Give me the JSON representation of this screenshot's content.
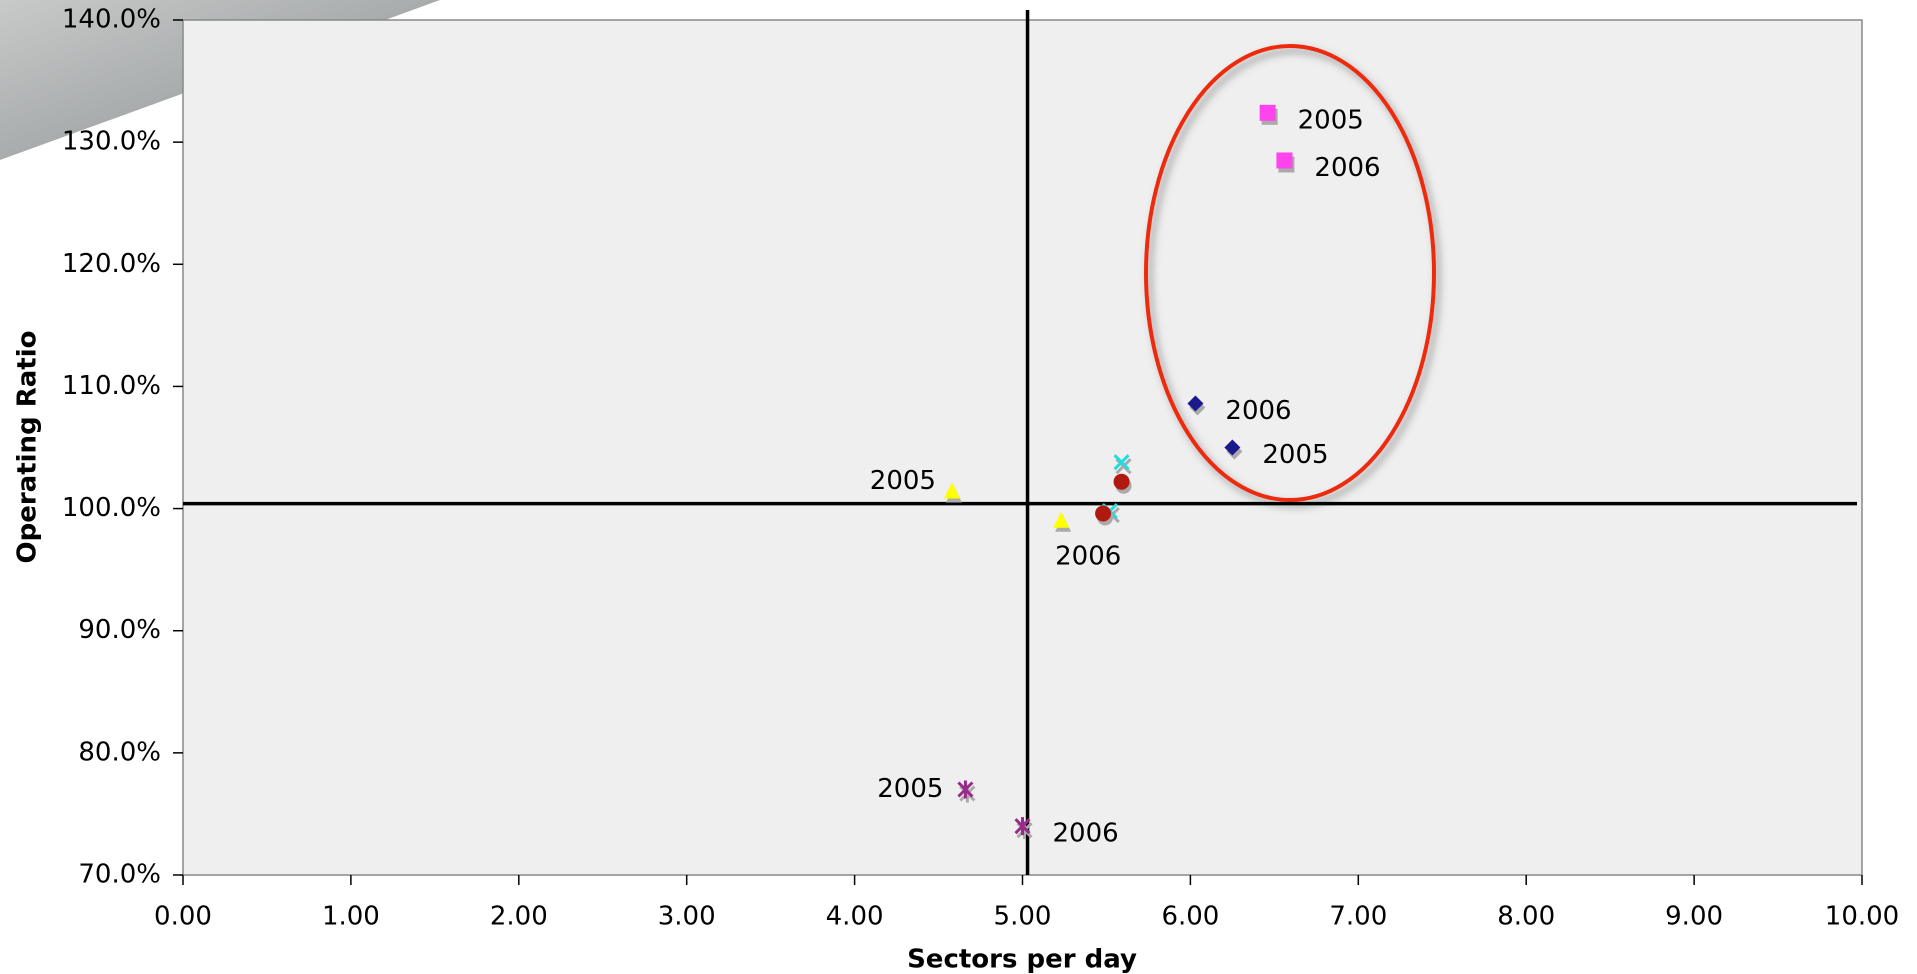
{
  "chart_data": {
    "type": "scatter",
    "x_label": "Sectors per day",
    "y_label": "Operating Ratio",
    "xlim": [
      0,
      10
    ],
    "xticks": [
      {
        "value": 0,
        "label": "0.00"
      },
      {
        "value": 1,
        "label": "1.00"
      },
      {
        "value": 2,
        "label": "2.00"
      },
      {
        "value": 3,
        "label": "3.00"
      },
      {
        "value": 4,
        "label": "4.00"
      },
      {
        "value": 5,
        "label": "5.00"
      },
      {
        "value": 6,
        "label": "6.00"
      },
      {
        "value": 7,
        "label": "7.00"
      },
      {
        "value": 8,
        "label": "8.00"
      },
      {
        "value": 9,
        "label": "9.00"
      },
      {
        "value": 10,
        "label": "10.00"
      }
    ],
    "ylim": [
      70,
      140
    ],
    "yticks": [
      {
        "value": 70,
        "label": "70.0%"
      },
      {
        "value": 80,
        "label": "80.0%"
      },
      {
        "value": 90,
        "label": "90.0%"
      },
      {
        "value": 100,
        "label": "100.0%"
      },
      {
        "value": 110,
        "label": "110.0%"
      },
      {
        "value": 120,
        "label": "120.0%"
      },
      {
        "value": 130,
        "label": "130.0%"
      },
      {
        "value": 140,
        "label": "140.0%"
      }
    ],
    "vline": 5.03,
    "hline": 100.4,
    "series": [
      {
        "marker": "square",
        "color": "#ff44ee",
        "x": [
          6.46,
          6.56
        ],
        "values": [
          132.4,
          128.5
        ],
        "labels": [
          "2005",
          "2006"
        ]
      },
      {
        "marker": "diamond",
        "color": "#1a1a8c",
        "x": [
          6.03,
          6.25
        ],
        "values": [
          108.6,
          105.0
        ],
        "labels": [
          "2006",
          "2005"
        ]
      },
      {
        "marker": "triangle",
        "color": "#ffff00",
        "x": [
          4.58,
          5.23
        ],
        "values": [
          101.4,
          99.0
        ],
        "labels": [
          "2005",
          "2006"
        ]
      },
      {
        "marker": "x",
        "color": "#22dddd",
        "x": [
          5.59,
          5.52
        ],
        "values": [
          103.8,
          99.8
        ]
      },
      {
        "marker": "circle",
        "color": "#b01810",
        "x": [
          5.59,
          5.48
        ],
        "values": [
          102.2,
          99.6
        ]
      },
      {
        "marker": "star",
        "color": "#9a2a8a",
        "x": [
          4.66,
          5.0
        ],
        "values": [
          77.0,
          74.0
        ],
        "labels": [
          "2005",
          "2006"
        ]
      }
    ]
  }
}
